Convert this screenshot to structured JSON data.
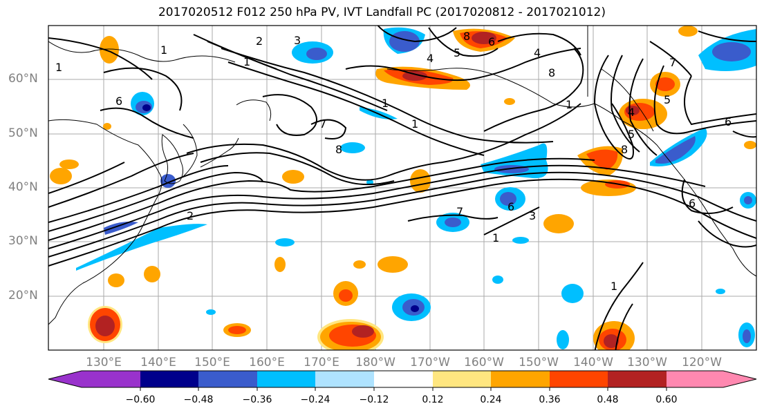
{
  "title": "2017020512 F012 250 hPa PV, IVT Landfall PC (2017020812 - 2017021012)",
  "lat_labels": [
    "60°N",
    "50°N",
    "40°N",
    "30°N",
    "20°N"
  ],
  "lon_labels": [
    "130°E",
    "140°E",
    "150°E",
    "160°E",
    "170°E",
    "180°W",
    "170°W",
    "160°W",
    "150°W",
    "140°W",
    "130°W",
    "120°W"
  ],
  "colorbar": {
    "ticks": [
      "−0.60",
      "−0.48",
      "−0.36",
      "−0.24",
      "−0.12",
      "0.12",
      "0.24",
      "0.36",
      "0.48",
      "0.60"
    ],
    "colors": [
      "#9932cc",
      "#00008b",
      "#3a5ccc",
      "#00bfff",
      "#afe3ff",
      "#ffffff",
      "#ffe680",
      "#ffa500",
      "#ff4500",
      "#b22222",
      "#ff88b0"
    ]
  },
  "contour_labels": [
    "3",
    "2",
    "1",
    "1",
    "1",
    "6",
    "7",
    "8",
    "4",
    "5",
    "8",
    "6",
    "4",
    "8",
    "1",
    "6",
    "4",
    "1",
    "1",
    "6",
    "7",
    "8",
    "5",
    "7",
    "3",
    "2",
    "1",
    "1",
    "6",
    "5"
  ]
}
